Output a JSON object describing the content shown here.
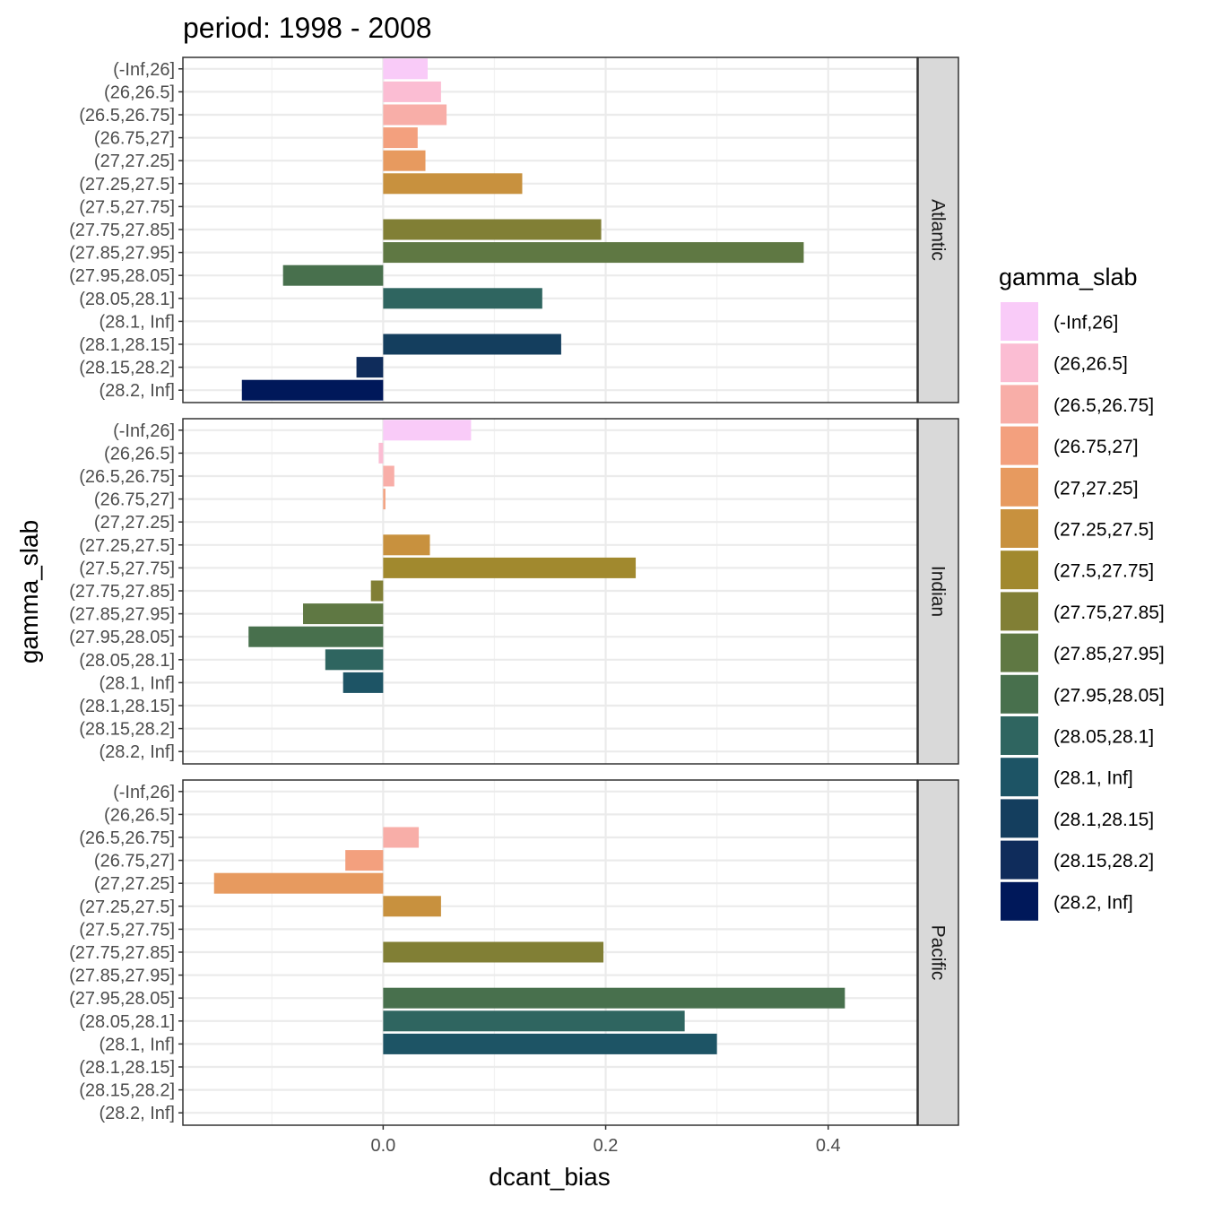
{
  "chart_data": {
    "type": "bar",
    "orientation": "horizontal",
    "title": "period: 1998 - 2008",
    "xlabel": "dcant_bias",
    "ylabel": "gamma_slab",
    "xlim": [
      -0.18,
      0.48
    ],
    "x_ticks": [
      "0.0",
      "0.2",
      "0.4"
    ],
    "x_tick_values": [
      0.0,
      0.2,
      0.4
    ],
    "grid": true,
    "legend_placement": "right",
    "legend_title": "gamma_slab",
    "categories": [
      "(-Inf,26]",
      "(26,26.5]",
      "(26.5,26.75]",
      "(26.75,27]",
      "(27,27.25]",
      "(27.25,27.5]",
      "(27.5,27.75]",
      "(27.75,27.85]",
      "(27.85,27.95]",
      "(27.95,28.05]",
      "(28.05,28.1]",
      "(28.1, Inf]",
      "(28.1,28.15]",
      "(28.15,28.2]",
      "(28.2, Inf]"
    ],
    "colors": [
      "#F9CBF8",
      "#FBBDD3",
      "#F8AEA8",
      "#F3A07E",
      "#E79A5F",
      "#C8913E",
      "#A1892E",
      "#817F35",
      "#5F7843",
      "#48704D",
      "#2F6560",
      "#1D5465",
      "#143E5E",
      "#0F2C5B",
      "#00185A"
    ],
    "facets": [
      {
        "name": "Atlantic",
        "values": [
          0.04,
          0.052,
          0.057,
          0.031,
          0.038,
          0.125,
          null,
          0.196,
          0.378,
          -0.09,
          0.143,
          null,
          0.16,
          -0.024,
          -0.127
        ]
      },
      {
        "name": "Indian",
        "values": [
          0.079,
          -0.004,
          0.01,
          0.002,
          null,
          0.042,
          0.227,
          -0.011,
          -0.072,
          -0.121,
          -0.052,
          -0.036,
          null,
          null,
          null
        ]
      },
      {
        "name": "Pacific",
        "values": [
          null,
          null,
          0.032,
          -0.034,
          -0.152,
          0.052,
          null,
          0.198,
          null,
          0.415,
          0.271,
          0.3,
          null,
          null,
          null
        ]
      }
    ]
  }
}
